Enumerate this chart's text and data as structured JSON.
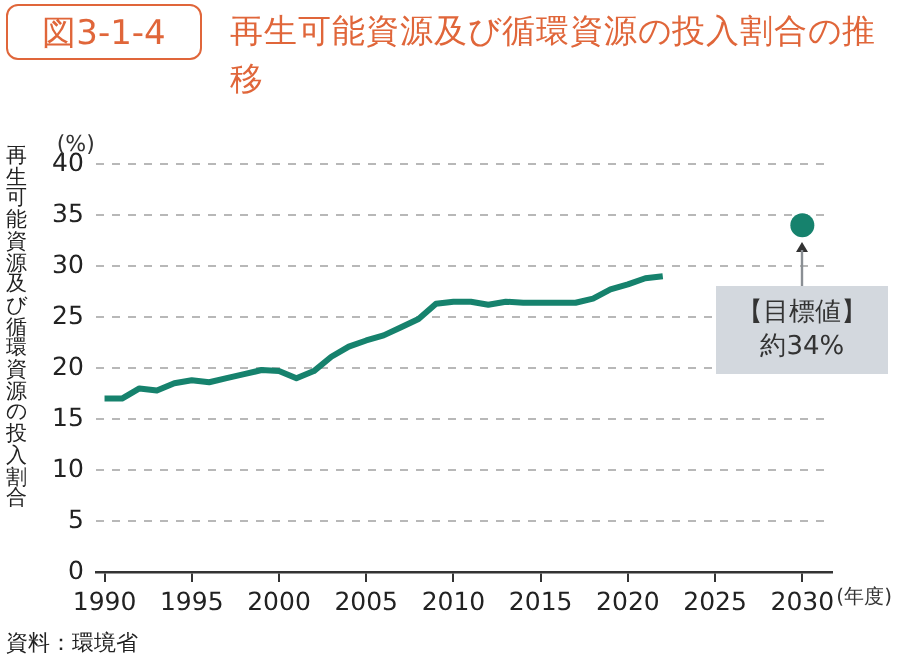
{
  "chart_data": {
    "type": "line",
    "title": "再生可能資源及び循環資源の投入割合の推移",
    "ylabel": "再生可能資源及び循環資源の投入割合",
    "annotations": [
      {
        "text": "【目標値】約34%",
        "x": 2030,
        "y": 34
      },
      "(%)",
      "(年度)",
      "資料：環境省",
      "図3-1-4"
    ],
    "x": [
      1990,
      1991,
      1992,
      1993,
      1994,
      1995,
      1996,
      1997,
      1998,
      1999,
      2000,
      2001,
      2002,
      2003,
      2004,
      2005,
      2006,
      2007,
      2008,
      2009,
      2010,
      2011,
      2012,
      2013,
      2014,
      2015,
      2016,
      2017,
      2018,
      2019,
      2020,
      2021,
      2022
    ],
    "series": [
      {
        "type": "line",
        "color": "#16826d",
        "values": [
          17.0,
          17.0,
          18.0,
          17.8,
          18.5,
          18.8,
          18.6,
          19.0,
          19.4,
          19.8,
          19.7,
          19.0,
          19.7,
          21.1,
          22.1,
          22.7,
          23.2,
          24.0,
          24.8,
          26.3,
          26.5,
          26.5,
          26.2,
          26.5,
          26.4,
          26.4,
          26.4,
          26.4,
          26.8,
          27.7,
          28.2,
          28.8,
          29.0
        ]
      },
      {
        "type": "scatter",
        "color": "#16826d",
        "x": [
          2030
        ],
        "values": [
          34
        ],
        "marker": "circle"
      }
    ],
    "xlim": [
      1989.5,
      2031.7
    ],
    "xticks": [
      1990,
      1995,
      2000,
      2005,
      2010,
      2015,
      2020,
      2025,
      2030
    ],
    "ylim": [
      0,
      40
    ],
    "yticks": [
      0,
      5,
      10,
      15,
      20,
      25,
      30,
      35,
      40
    ],
    "grid": "y",
    "legend": false,
    "marker": "none",
    "line_style": "solid"
  }
}
